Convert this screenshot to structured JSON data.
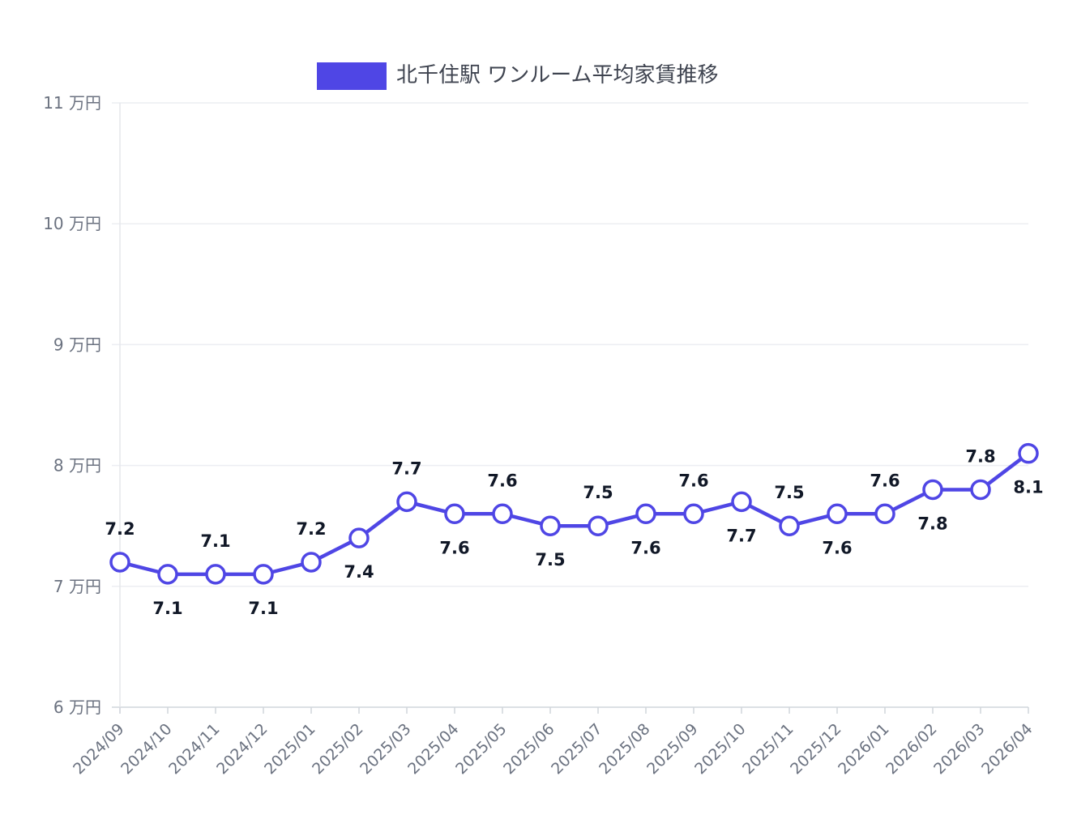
{
  "chart_data": {
    "type": "line",
    "legend": "北千住駅 ワンルーム平均家賃推移",
    "legend_position": "top",
    "x": [
      "2024/09",
      "2024/10",
      "2024/11",
      "2024/12",
      "2025/01",
      "2025/02",
      "2025/03",
      "2025/04",
      "2025/05",
      "2025/06",
      "2025/07",
      "2025/08",
      "2025/09",
      "2025/10",
      "2025/11",
      "2025/12",
      "2026/01",
      "2026/02",
      "2026/03",
      "2026/04"
    ],
    "series": [
      {
        "name": "北千住駅 ワンルーム平均家賃推移",
        "values": [
          7.2,
          7.1,
          7.1,
          7.1,
          7.2,
          7.4,
          7.7,
          7.6,
          7.6,
          7.5,
          7.5,
          7.6,
          7.6,
          7.7,
          7.5,
          7.6,
          7.6,
          7.8,
          7.8,
          8.1
        ],
        "color": "#4f46e5"
      }
    ],
    "data_labels": [
      "7.2",
      "7.1",
      "7.1",
      "7.1",
      "7.2",
      "7.4",
      "7.7",
      "7.6",
      "7.6",
      "7.5",
      "7.5",
      "7.6",
      "7.6",
      "7.7",
      "7.5",
      "7.6",
      "7.6",
      "7.8",
      "7.8",
      "8.1"
    ],
    "y_ticks": [
      "6 万円",
      "7 万円",
      "8 万円",
      "9 万円",
      "10 万円",
      "11 万円"
    ],
    "ylim": [
      6,
      11
    ],
    "grid": true
  }
}
